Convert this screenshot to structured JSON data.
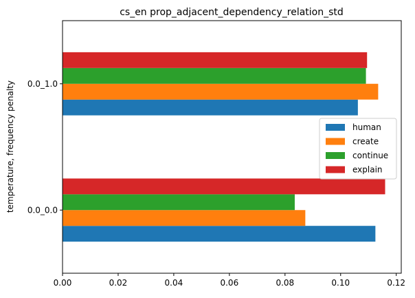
{
  "chart_data": {
    "type": "bar",
    "orientation": "horizontal",
    "title": "cs_en prop_adjacent_dependency_relation_std",
    "ylabel": "temperature, frequency penalty",
    "xlabel": "",
    "categories": [
      "0.0_0.0",
      "0.0_1.0"
    ],
    "xlim": [
      0,
      0.1218
    ],
    "xticks": [
      0.0,
      0.02,
      0.04,
      0.06,
      0.08,
      0.1,
      0.12
    ],
    "xtick_labels": [
      "0.00",
      "0.02",
      "0.04",
      "0.06",
      "0.08",
      "0.10",
      "0.12"
    ],
    "grid": false,
    "legend_position": "center-right",
    "series": [
      {
        "name": "human",
        "color": "#1f77b4",
        "values": [
          0.1125,
          0.1062
        ]
      },
      {
        "name": "create",
        "color": "#ff7f0e",
        "values": [
          0.0873,
          0.1135
        ]
      },
      {
        "name": "continue",
        "color": "#2ca02c",
        "values": [
          0.0835,
          0.1091
        ]
      },
      {
        "name": "explain",
        "color": "#d62728",
        "values": [
          0.116,
          0.1095
        ]
      }
    ]
  }
}
